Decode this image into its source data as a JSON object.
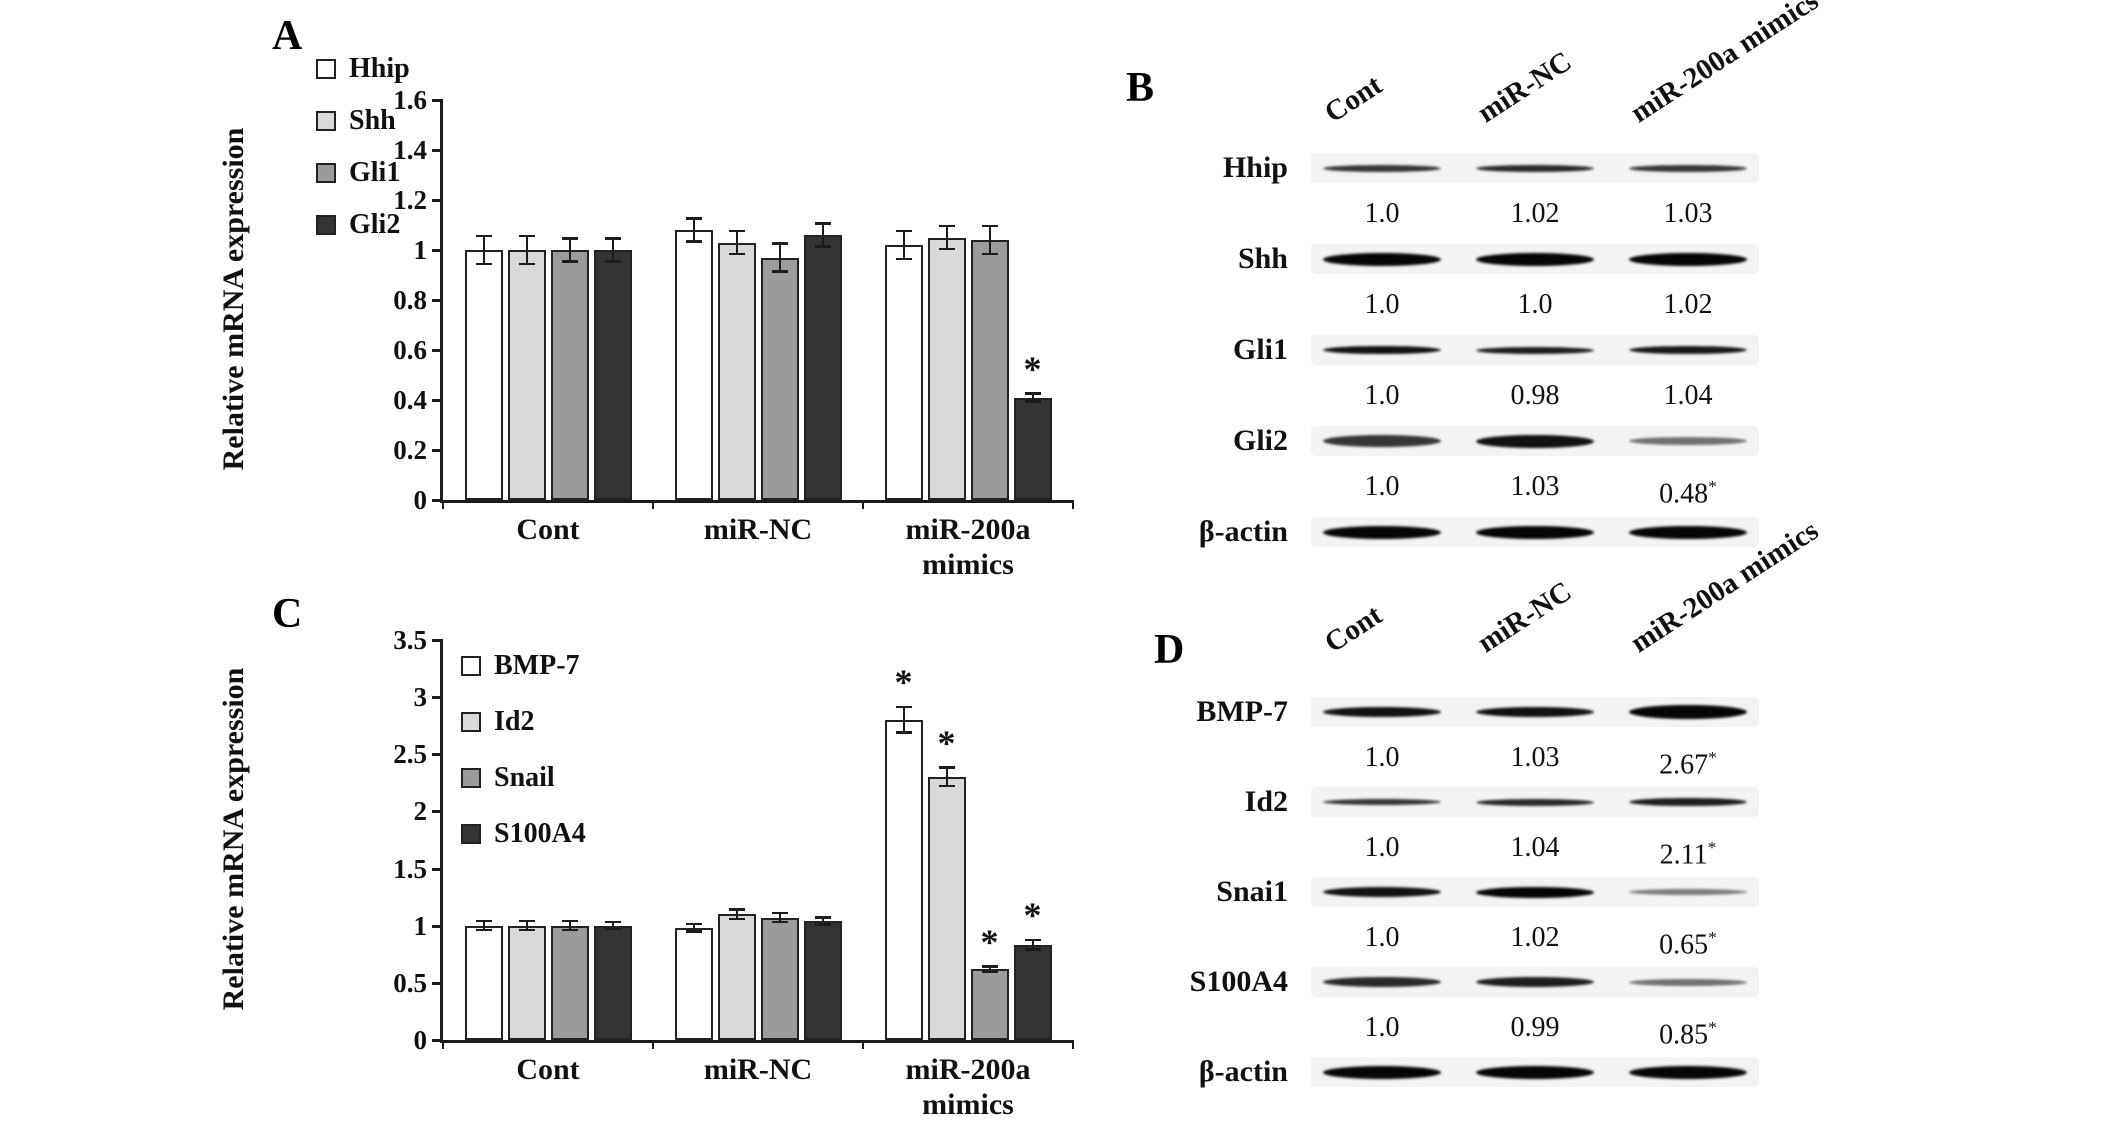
{
  "panels": {
    "A": {
      "label": "A",
      "ylabel": "Relative mRNA expression"
    },
    "B": {
      "label": "B"
    },
    "C": {
      "label": "C",
      "ylabel": "Relative mRNA expression"
    },
    "D": {
      "label": "D"
    }
  },
  "chart_data": [
    {
      "id": "A",
      "type": "bar",
      "title": "",
      "ylabel": "Relative mRNA expression",
      "ylim": [
        0,
        1.6
      ],
      "grid": false,
      "legend_position": "outside-top-left",
      "yticks": [
        {
          "v": 0,
          "label": "0"
        },
        {
          "v": 0.2,
          "label": "0.2"
        },
        {
          "v": 0.4,
          "label": "0.4"
        },
        {
          "v": 0.6,
          "label": "0.6"
        },
        {
          "v": 0.8,
          "label": "0.8"
        },
        {
          "v": 1,
          "label": "1"
        },
        {
          "v": 1.2,
          "label": "1.2"
        },
        {
          "v": 1.4,
          "label": "1.4"
        },
        {
          "v": 1.6,
          "label": "1.6"
        }
      ],
      "categories": [
        {
          "name": "Cont",
          "lines": [
            "Cont"
          ]
        },
        {
          "name": "miR-NC",
          "lines": [
            "miR-NC"
          ]
        },
        {
          "name": "miR-200a mimics",
          "lines": [
            "miR-200a",
            "mimics"
          ]
        }
      ],
      "series": [
        {
          "name": "Hhip",
          "color": "#ffffff",
          "values": [
            1.0,
            1.08,
            1.02
          ],
          "errors": [
            0.06,
            0.05,
            0.06
          ],
          "sig": [
            "",
            "",
            ""
          ]
        },
        {
          "name": "Shh",
          "color": "#d9d9d9",
          "values": [
            1.0,
            1.03,
            1.05
          ],
          "errors": [
            0.06,
            0.05,
            0.05
          ],
          "sig": [
            "",
            "",
            ""
          ]
        },
        {
          "name": "Gli1",
          "color": "#9b9b9b",
          "values": [
            1.0,
            0.97,
            1.04
          ],
          "errors": [
            0.05,
            0.06,
            0.06
          ],
          "sig": [
            "",
            "",
            ""
          ]
        },
        {
          "name": "Gli2",
          "color": "#333333",
          "values": [
            1.0,
            1.06,
            0.41
          ],
          "errors": [
            0.05,
            0.05,
            0.02
          ],
          "sig": [
            "",
            "",
            "*"
          ]
        }
      ]
    },
    {
      "id": "C",
      "type": "bar",
      "title": "",
      "ylabel": "Relative mRNA expression",
      "ylim": [
        0,
        3.5
      ],
      "grid": false,
      "legend_position": "inside-top-left",
      "yticks": [
        {
          "v": 0,
          "label": "0"
        },
        {
          "v": 0.5,
          "label": "0.5"
        },
        {
          "v": 1,
          "label": "1"
        },
        {
          "v": 1.5,
          "label": "1.5"
        },
        {
          "v": 2,
          "label": "2"
        },
        {
          "v": 2.5,
          "label": "2.5"
        },
        {
          "v": 3,
          "label": "3"
        },
        {
          "v": 3.5,
          "label": "3.5"
        }
      ],
      "categories": [
        {
          "name": "Cont",
          "lines": [
            "Cont"
          ]
        },
        {
          "name": "miR-NC",
          "lines": [
            "miR-NC"
          ]
        },
        {
          "name": "miR-200a mimics",
          "lines": [
            "miR-200a",
            "mimics"
          ]
        }
      ],
      "series": [
        {
          "name": "BMP-7",
          "color": "#ffffff",
          "values": [
            1.0,
            0.98,
            2.8
          ],
          "errors": [
            0.05,
            0.04,
            0.12
          ],
          "sig": [
            "",
            "",
            "*"
          ]
        },
        {
          "name": "Id2",
          "color": "#d9d9d9",
          "values": [
            1.0,
            1.1,
            2.3
          ],
          "errors": [
            0.05,
            0.05,
            0.09
          ],
          "sig": [
            "",
            "",
            "*"
          ]
        },
        {
          "name": "Snail",
          "color": "#9b9b9b",
          "values": [
            1.0,
            1.07,
            0.62
          ],
          "errors": [
            0.05,
            0.05,
            0.03
          ],
          "sig": [
            "",
            "",
            "*"
          ]
        },
        {
          "name": "S100A4",
          "color": "#333333",
          "values": [
            1.0,
            1.04,
            0.83
          ],
          "errors": [
            0.04,
            0.04,
            0.05
          ],
          "sig": [
            "",
            "",
            "*"
          ]
        }
      ]
    }
  ],
  "blots": [
    {
      "id": "B",
      "lanes": [
        "Cont",
        "miR-NC",
        "miR-200a mimics"
      ],
      "rows": [
        {
          "label": "Hhip",
          "values": [
            "1.0",
            "1.02",
            "1.03"
          ],
          "bands": [
            {
              "h": 7,
              "i": 0.8
            },
            {
              "h": 7,
              "i": 0.85
            },
            {
              "h": 7,
              "i": 0.8
            }
          ]
        },
        {
          "label": "Shh",
          "values": [
            "1.0",
            "1.0",
            "1.02"
          ],
          "bands": [
            {
              "h": 13,
              "i": 1
            },
            {
              "h": 13,
              "i": 1
            },
            {
              "h": 13,
              "i": 1
            }
          ]
        },
        {
          "label": "Gli1",
          "values": [
            "1.0",
            "0.98",
            "1.04"
          ],
          "bands": [
            {
              "h": 8,
              "i": 0.95
            },
            {
              "h": 7,
              "i": 0.9
            },
            {
              "h": 8,
              "i": 0.92
            }
          ]
        },
        {
          "label": "Gli2",
          "values": [
            "1.0",
            "1.03",
            "0.48*"
          ],
          "bands": [
            {
              "h": 12,
              "i": 0.8
            },
            {
              "h": 13,
              "i": 0.95
            },
            {
              "h": 8,
              "i": 0.55
            }
          ]
        },
        {
          "label": "β-actin",
          "values": null,
          "bands": [
            {
              "h": 13,
              "i": 1
            },
            {
              "h": 13,
              "i": 1
            },
            {
              "h": 13,
              "i": 1
            }
          ]
        }
      ]
    },
    {
      "id": "D",
      "lanes": [
        "Cont",
        "miR-NC",
        "miR-200a mimics"
      ],
      "rows": [
        {
          "label": "BMP-7",
          "values": [
            "1.0",
            "1.03",
            "2.67*"
          ],
          "bands": [
            {
              "h": 10,
              "i": 0.95
            },
            {
              "h": 10,
              "i": 0.95
            },
            {
              "h": 14,
              "i": 1
            }
          ]
        },
        {
          "label": "Id2",
          "values": [
            "1.0",
            "1.04",
            "2.11*"
          ],
          "bands": [
            {
              "h": 6,
              "i": 0.8
            },
            {
              "h": 7,
              "i": 0.85
            },
            {
              "h": 8,
              "i": 0.9
            }
          ]
        },
        {
          "label": "Snai1",
          "values": [
            "1.0",
            "1.02",
            "0.65*"
          ],
          "bands": [
            {
              "h": 10,
              "i": 0.95
            },
            {
              "h": 11,
              "i": 1
            },
            {
              "h": 6,
              "i": 0.5
            }
          ]
        },
        {
          "label": "S100A4",
          "values": [
            "1.0",
            "0.99",
            "0.85*"
          ],
          "bands": [
            {
              "h": 10,
              "i": 0.85
            },
            {
              "h": 10,
              "i": 0.9
            },
            {
              "h": 7,
              "i": 0.55
            }
          ]
        },
        {
          "label": "β-actin",
          "values": null,
          "bands": [
            {
              "h": 13,
              "i": 1
            },
            {
              "h": 13,
              "i": 1
            },
            {
              "h": 13,
              "i": 1
            }
          ]
        }
      ]
    }
  ]
}
